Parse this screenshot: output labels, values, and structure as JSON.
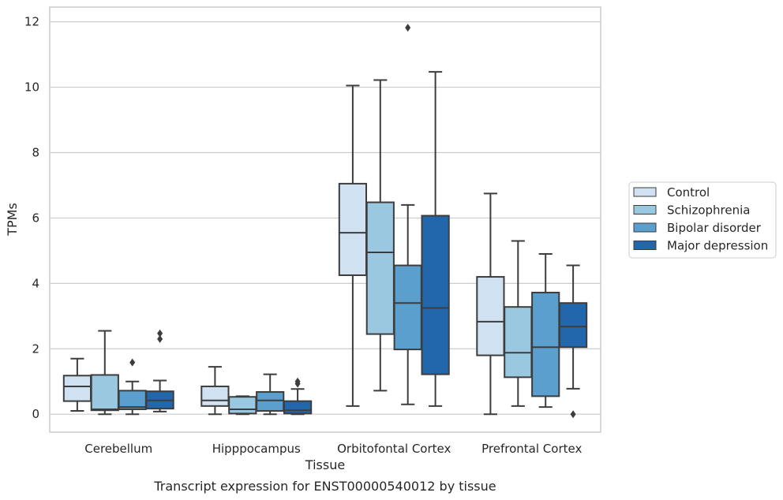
{
  "chart_data": {
    "type": "box",
    "xlabel": "Tissue",
    "ylabel": "TPMs",
    "caption": "Transcript expression for ENST00000540012 by tissue",
    "ylim": [
      -0.55,
      12.45
    ],
    "yticks": [
      0,
      2,
      4,
      6,
      8,
      10,
      12
    ],
    "grid": "horizontal",
    "legend_position": "right",
    "categories": [
      "Cerebellum",
      "Hipppocampus",
      "Orbitofontal Cortex",
      "Prefrontal Cortex"
    ],
    "series": [
      {
        "name": "Control",
        "color": "#d0e1f2",
        "boxes": [
          {
            "whisker_low": 0.1,
            "q1": 0.4,
            "median": 0.85,
            "q3": 1.18,
            "whisker_high": 1.7,
            "outliers": []
          },
          {
            "whisker_low": 0.0,
            "q1": 0.25,
            "median": 0.42,
            "q3": 0.85,
            "whisker_high": 1.45,
            "outliers": []
          },
          {
            "whisker_low": 0.25,
            "q1": 4.25,
            "median": 5.55,
            "q3": 7.05,
            "whisker_high": 10.05,
            "outliers": []
          },
          {
            "whisker_low": 0.0,
            "q1": 1.8,
            "median": 2.83,
            "q3": 4.2,
            "whisker_high": 6.75,
            "outliers": []
          }
        ]
      },
      {
        "name": "Schizophrenia",
        "color": "#9ac8e0",
        "boxes": [
          {
            "whisker_low": 0.0,
            "q1": 0.12,
            "median": 0.15,
            "q3": 1.2,
            "whisker_high": 2.55,
            "outliers": []
          },
          {
            "whisker_low": 0.0,
            "q1": 0.02,
            "median": 0.15,
            "q3": 0.53,
            "whisker_high": 0.55,
            "outliers": []
          },
          {
            "whisker_low": 0.72,
            "q1": 2.45,
            "median": 4.95,
            "q3": 6.48,
            "whisker_high": 10.22,
            "outliers": []
          },
          {
            "whisker_low": 0.25,
            "q1": 1.13,
            "median": 1.88,
            "q3": 3.28,
            "whisker_high": 5.3,
            "outliers": []
          }
        ]
      },
      {
        "name": "Bipolar disorder",
        "color": "#5a9fcd",
        "boxes": [
          {
            "whisker_low": 0.0,
            "q1": 0.15,
            "median": 0.22,
            "q3": 0.72,
            "whisker_high": 1.0,
            "outliers": [
              1.58
            ]
          },
          {
            "whisker_low": 0.0,
            "q1": 0.1,
            "median": 0.42,
            "q3": 0.68,
            "whisker_high": 1.22,
            "outliers": []
          },
          {
            "whisker_low": 0.3,
            "q1": 1.98,
            "median": 3.4,
            "q3": 4.55,
            "whisker_high": 6.4,
            "outliers": [
              11.82
            ]
          },
          {
            "whisker_low": 0.22,
            "q1": 0.55,
            "median": 2.05,
            "q3": 3.72,
            "whisker_high": 4.9,
            "outliers": []
          }
        ]
      },
      {
        "name": "Major depression",
        "color": "#2266ab",
        "boxes": [
          {
            "whisker_low": 0.08,
            "q1": 0.17,
            "median": 0.42,
            "q3": 0.7,
            "whisker_high": 1.03,
            "outliers": [
              2.3,
              2.47
            ]
          },
          {
            "whisker_low": 0.0,
            "q1": 0.02,
            "median": 0.12,
            "q3": 0.4,
            "whisker_high": 0.77,
            "outliers": [
              0.93,
              1.0
            ]
          },
          {
            "whisker_low": 0.25,
            "q1": 1.22,
            "median": 3.25,
            "q3": 6.07,
            "whisker_high": 10.47,
            "outliers": []
          },
          {
            "whisker_low": 0.78,
            "q1": 2.05,
            "median": 2.68,
            "q3": 3.4,
            "whisker_high": 4.55,
            "outliers": [
              0.0
            ]
          }
        ]
      }
    ]
  }
}
